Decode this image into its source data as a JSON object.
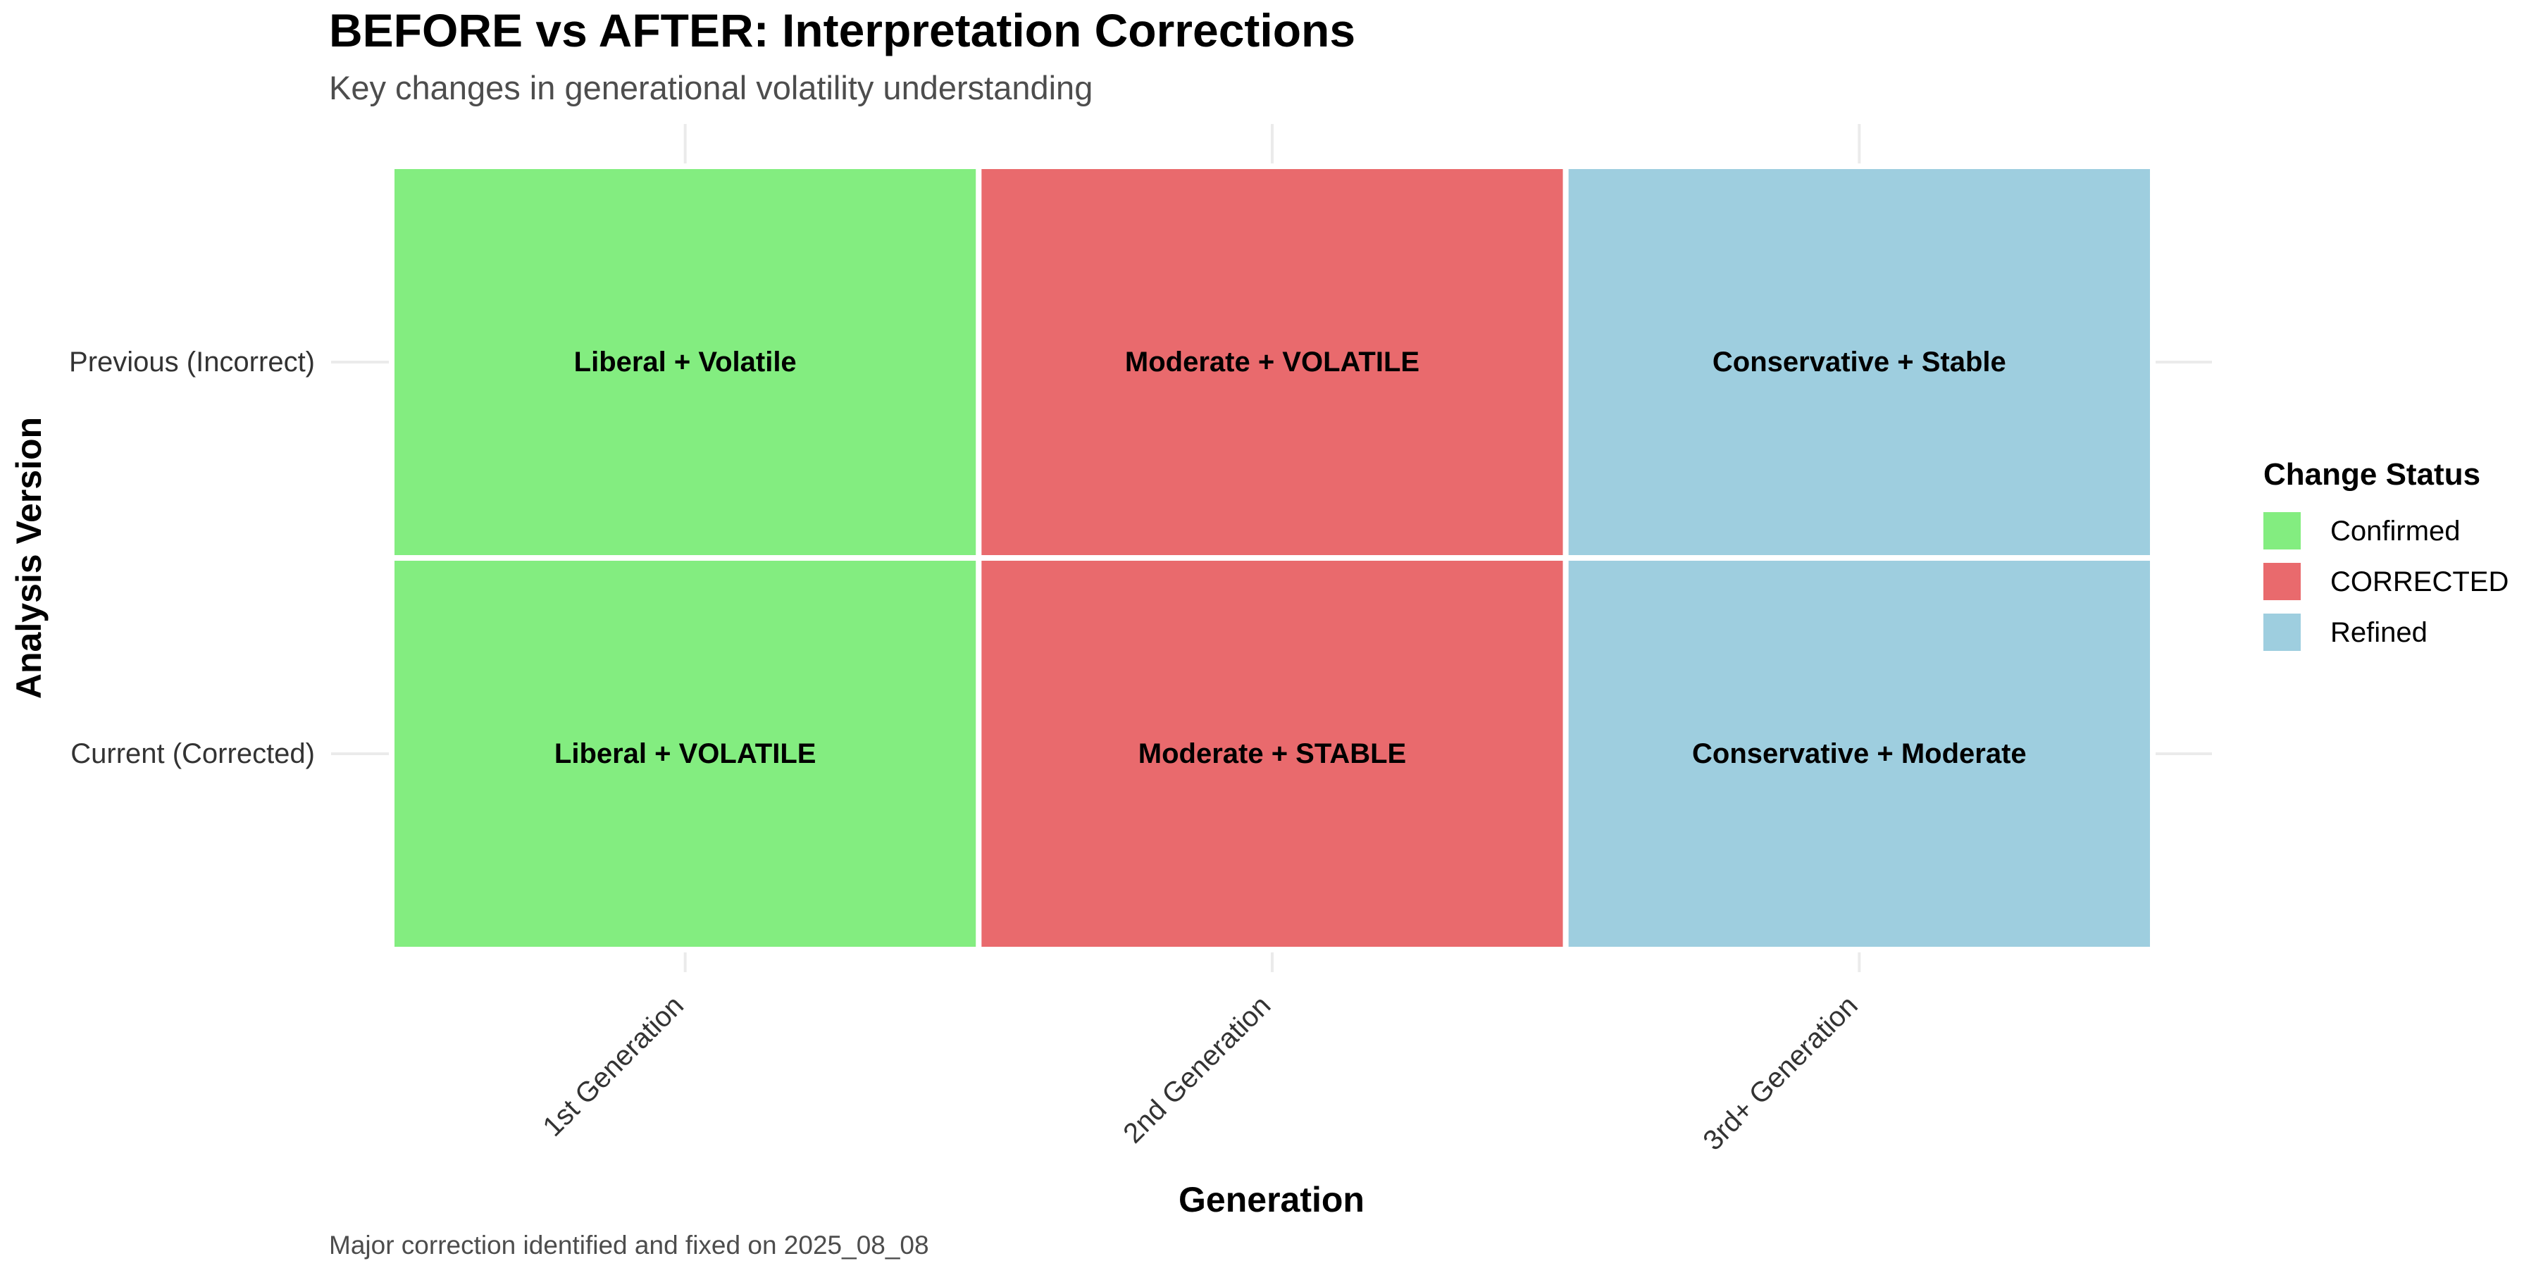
{
  "chart_data": {
    "type": "heatmap",
    "title": "BEFORE vs AFTER: Interpretation Corrections",
    "subtitle": "Key changes in generational volatility understanding",
    "caption": "Major correction identified and fixed on 2025_08_08",
    "xlabel": "Generation",
    "ylabel": "Analysis Version",
    "x_categories": [
      "1st Generation",
      "2nd Generation",
      "3rd+ Generation"
    ],
    "y_categories": [
      "Previous (Incorrect)",
      "Current (Corrected)"
    ],
    "cells": [
      {
        "x": "1st Generation",
        "y": "Previous (Incorrect)",
        "label": "Liberal + Volatile",
        "status": "Confirmed"
      },
      {
        "x": "2nd Generation",
        "y": "Previous (Incorrect)",
        "label": "Moderate + VOLATILE",
        "status": "CORRECTED"
      },
      {
        "x": "3rd+ Generation",
        "y": "Previous (Incorrect)",
        "label": "Conservative + Stable",
        "status": "Refined"
      },
      {
        "x": "1st Generation",
        "y": "Current (Corrected)",
        "label": "Liberal + VOLATILE",
        "status": "Confirmed"
      },
      {
        "x": "2nd Generation",
        "y": "Current (Corrected)",
        "label": "Moderate + STABLE",
        "status": "CORRECTED"
      },
      {
        "x": "3rd+ Generation",
        "y": "Current (Corrected)",
        "label": "Conservative + Moderate",
        "status": "Refined"
      }
    ],
    "legend": {
      "title": "Change Status",
      "position": "right",
      "items": [
        {
          "label": "Confirmed",
          "color": "#83ED80"
        },
        {
          "label": "CORRECTED",
          "color": "#E96A6D"
        },
        {
          "label": "Refined",
          "color": "#9ECEDF"
        }
      ]
    },
    "grid": true
  }
}
